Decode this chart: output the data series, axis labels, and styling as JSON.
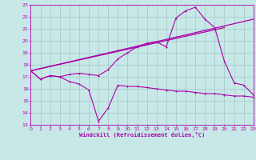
{
  "xlabel": "Windchill (Refroidissement éolien,°C)",
  "xlim": [
    0,
    23
  ],
  "ylim": [
    13,
    23
  ],
  "yticks": [
    13,
    14,
    15,
    16,
    17,
    18,
    19,
    20,
    21,
    22,
    23
  ],
  "xticks": [
    0,
    1,
    2,
    3,
    4,
    5,
    6,
    7,
    8,
    9,
    10,
    11,
    12,
    13,
    14,
    15,
    16,
    17,
    18,
    19,
    20,
    21,
    22,
    23
  ],
  "background_color": "#c8e8e8",
  "grid_color": "#a0c8c8",
  "line_color": "#aa00aa",
  "line1_x": [
    0,
    1,
    2,
    3,
    4,
    5,
    6,
    7,
    8,
    9,
    10,
    11,
    12,
    13,
    14,
    15,
    16,
    17,
    18,
    19,
    20,
    21,
    22,
    23
  ],
  "line1_y": [
    17.5,
    16.8,
    17.1,
    17.0,
    16.6,
    16.4,
    15.9,
    13.3,
    14.4,
    16.3,
    16.2,
    16.2,
    16.1,
    16.0,
    15.9,
    15.8,
    15.8,
    15.7,
    15.6,
    15.6,
    15.5,
    15.4,
    15.4,
    15.3
  ],
  "line2_x": [
    0,
    1,
    2,
    3,
    4,
    5,
    6,
    7,
    8,
    9,
    10,
    11,
    12,
    13,
    14,
    15,
    16,
    17,
    18,
    19,
    20,
    21,
    22,
    23
  ],
  "line2_y": [
    17.5,
    16.8,
    17.1,
    17.0,
    17.2,
    17.3,
    17.2,
    17.1,
    17.6,
    18.5,
    19.0,
    19.5,
    19.8,
    19.9,
    19.5,
    21.9,
    22.5,
    22.8,
    21.8,
    21.1,
    18.3,
    16.5,
    16.3,
    15.5
  ],
  "line3_x": [
    0,
    23
  ],
  "line3_y": [
    17.5,
    21.8
  ],
  "line4_x": [
    0,
    20
  ],
  "line4_y": [
    17.5,
    21.1
  ]
}
